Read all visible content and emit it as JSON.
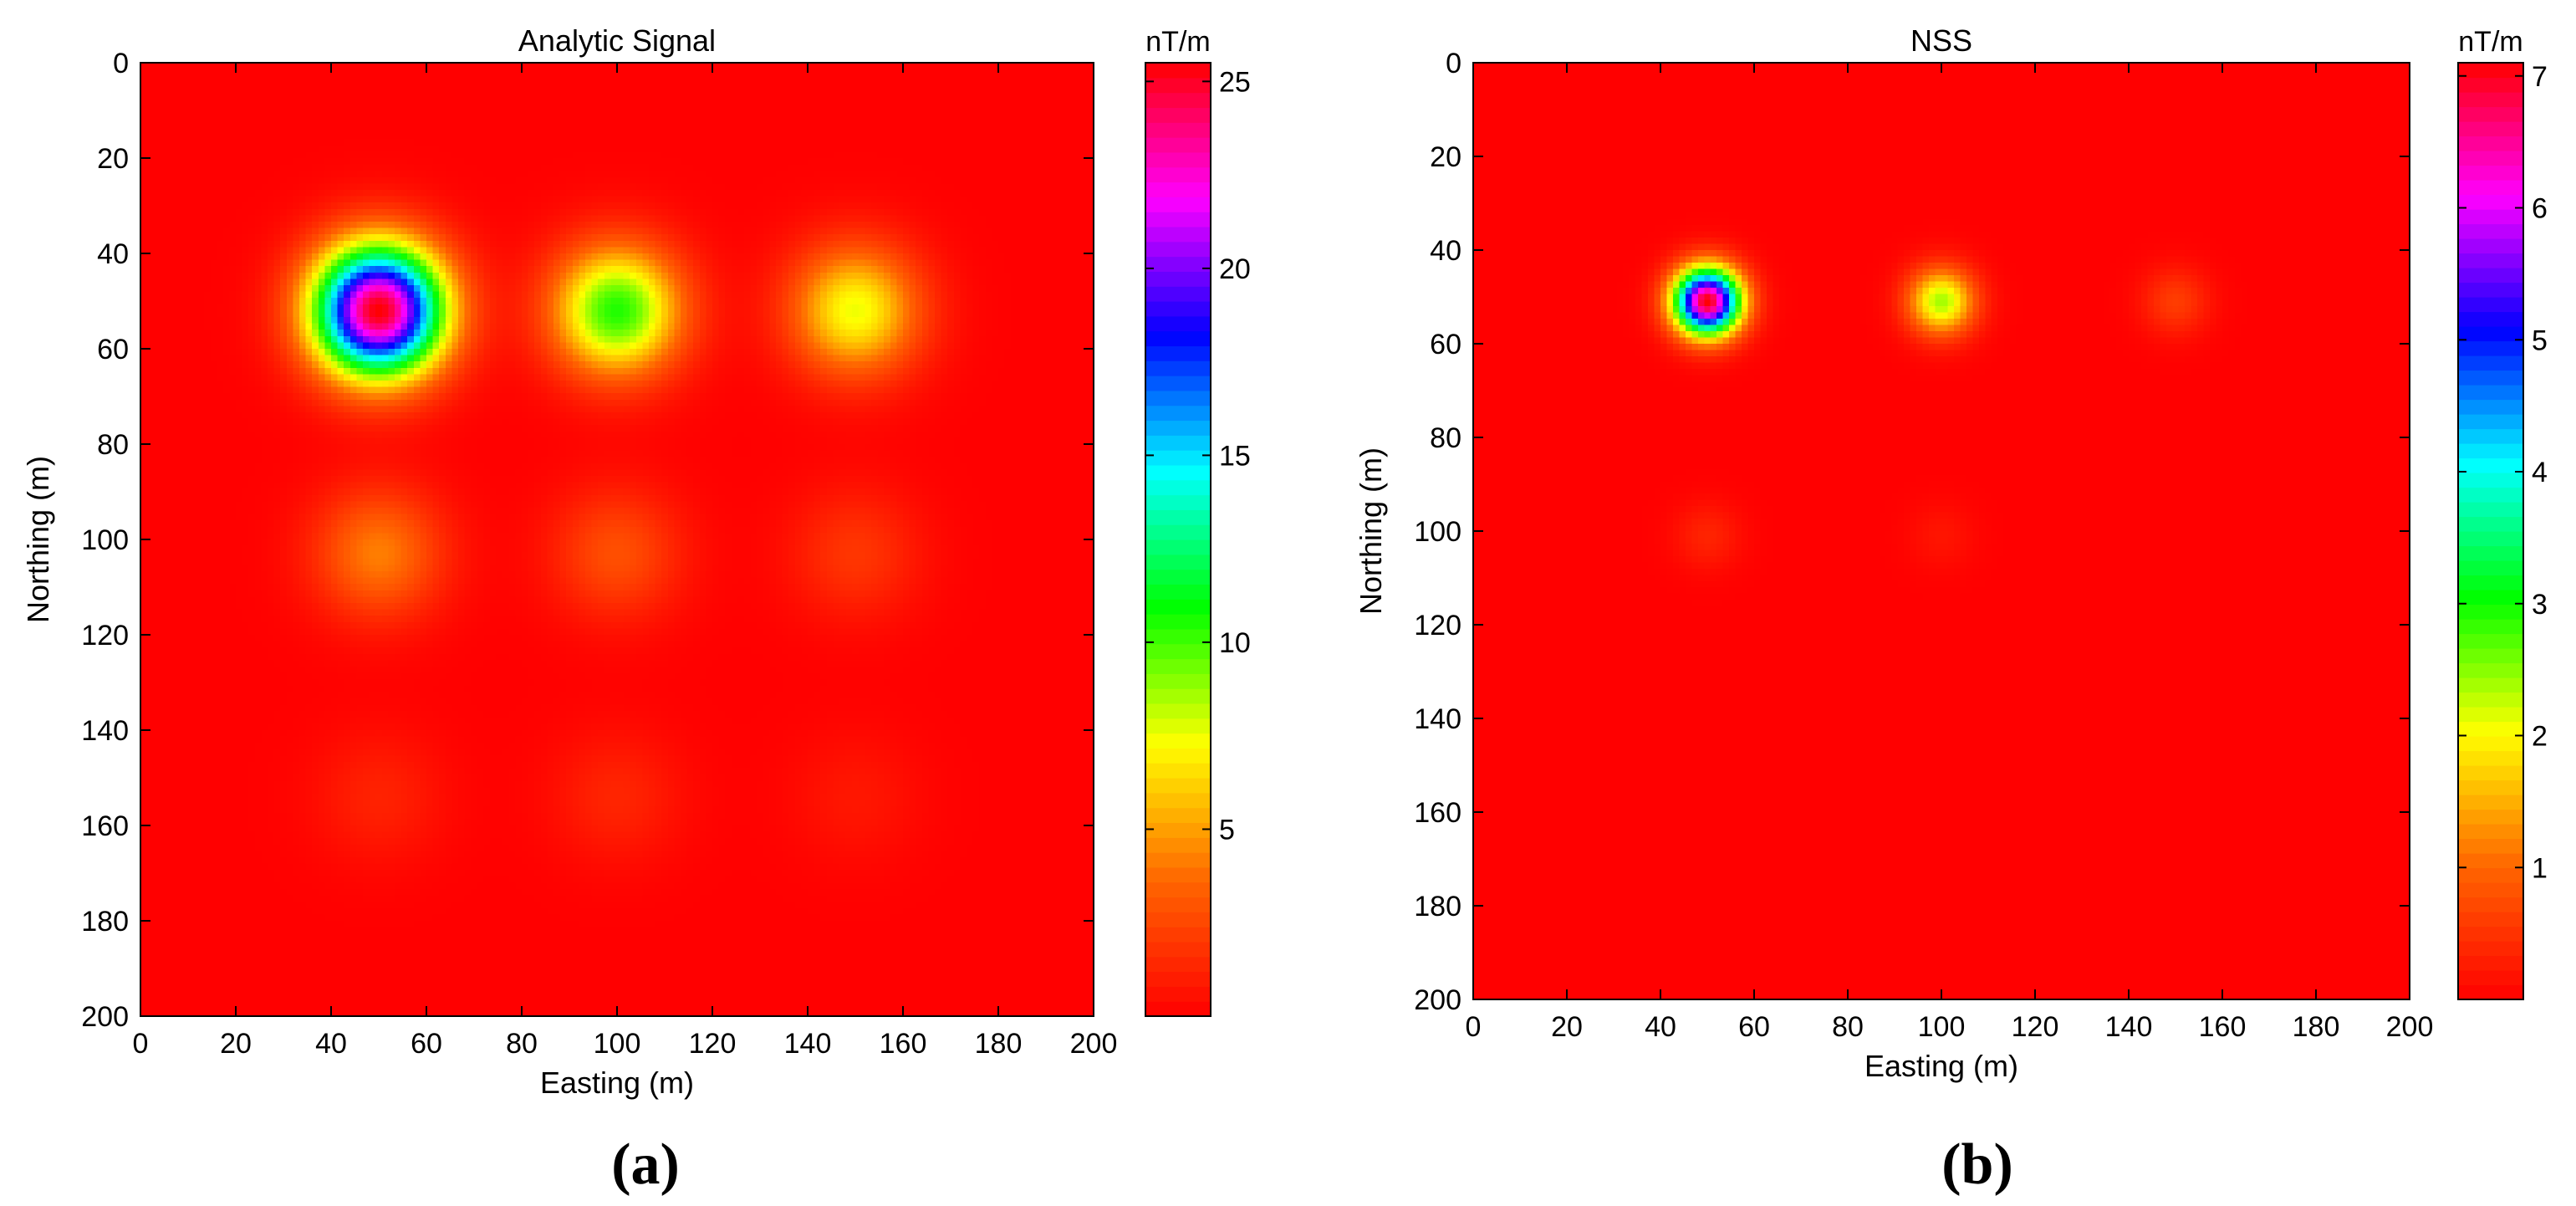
{
  "figure": {
    "panel_labels": [
      "(a)",
      "(b)"
    ]
  },
  "chart_data": [
    {
      "type": "heatmap",
      "title": "Analytic Signal",
      "xlabel": "Easting (m)",
      "ylabel": "Northing (m)",
      "xlim": [
        0,
        200
      ],
      "ylim": [
        0,
        200
      ],
      "y_axis_direction": "top-to-bottom",
      "x_ticks": [
        0,
        20,
        40,
        60,
        80,
        100,
        120,
        140,
        160,
        180,
        200
      ],
      "y_ticks": [
        0,
        20,
        40,
        60,
        80,
        100,
        120,
        140,
        160,
        180,
        200
      ],
      "colorbar": {
        "label": "nT/m",
        "min": 0,
        "max": 25.5,
        "ticks": [
          5,
          10,
          15,
          20,
          25
        ]
      },
      "colormap": [
        "#ff0000",
        "#ff6600",
        "#ffff00",
        "#00ff00",
        "#00ffff",
        "#0000ff",
        "#ff00ff",
        "#ff0000"
      ],
      "background_value": 0,
      "anomalies": [
        {
          "x": 50,
          "y": 52,
          "peak": 25.5
        },
        {
          "x": 100,
          "y": 52,
          "peak": 10.5
        },
        {
          "x": 150,
          "y": 52,
          "peak": 7.5
        },
        {
          "x": 50,
          "y": 103,
          "peak": 4.2
        },
        {
          "x": 100,
          "y": 103,
          "peak": 2.8
        },
        {
          "x": 150,
          "y": 103,
          "peak": 1.9
        },
        {
          "x": 50,
          "y": 154,
          "peak": 1.2
        },
        {
          "x": 100,
          "y": 154,
          "peak": 1.3
        },
        {
          "x": 150,
          "y": 154,
          "peak": 0.8
        }
      ]
    },
    {
      "type": "heatmap",
      "title": "NSS",
      "xlabel": "Easting (m)",
      "ylabel": "Northing (m)",
      "xlim": [
        0,
        200
      ],
      "ylim": [
        0,
        200
      ],
      "y_axis_direction": "top-to-bottom",
      "x_ticks": [
        0,
        20,
        40,
        60,
        80,
        100,
        120,
        140,
        160,
        180,
        200
      ],
      "y_ticks": [
        0,
        20,
        40,
        60,
        80,
        100,
        120,
        140,
        160,
        180,
        200
      ],
      "colorbar": {
        "label": "nT/m",
        "min": 0,
        "max": 7.1,
        "ticks": [
          1,
          2,
          3,
          4,
          5,
          6,
          7
        ]
      },
      "colormap": [
        "#ff0000",
        "#ff6600",
        "#ffff00",
        "#00ff00",
        "#00ffff",
        "#0000ff",
        "#ff00ff",
        "#ff0000"
      ],
      "background_value": 0,
      "anomalies": [
        {
          "x": 50,
          "y": 51,
          "peak": 7.1
        },
        {
          "x": 100,
          "y": 51,
          "peak": 2.4
        },
        {
          "x": 150,
          "y": 51,
          "peak": 0.6
        },
        {
          "x": 50,
          "y": 101,
          "peak": 0.35
        },
        {
          "x": 100,
          "y": 101,
          "peak": 0.2
        }
      ]
    }
  ]
}
